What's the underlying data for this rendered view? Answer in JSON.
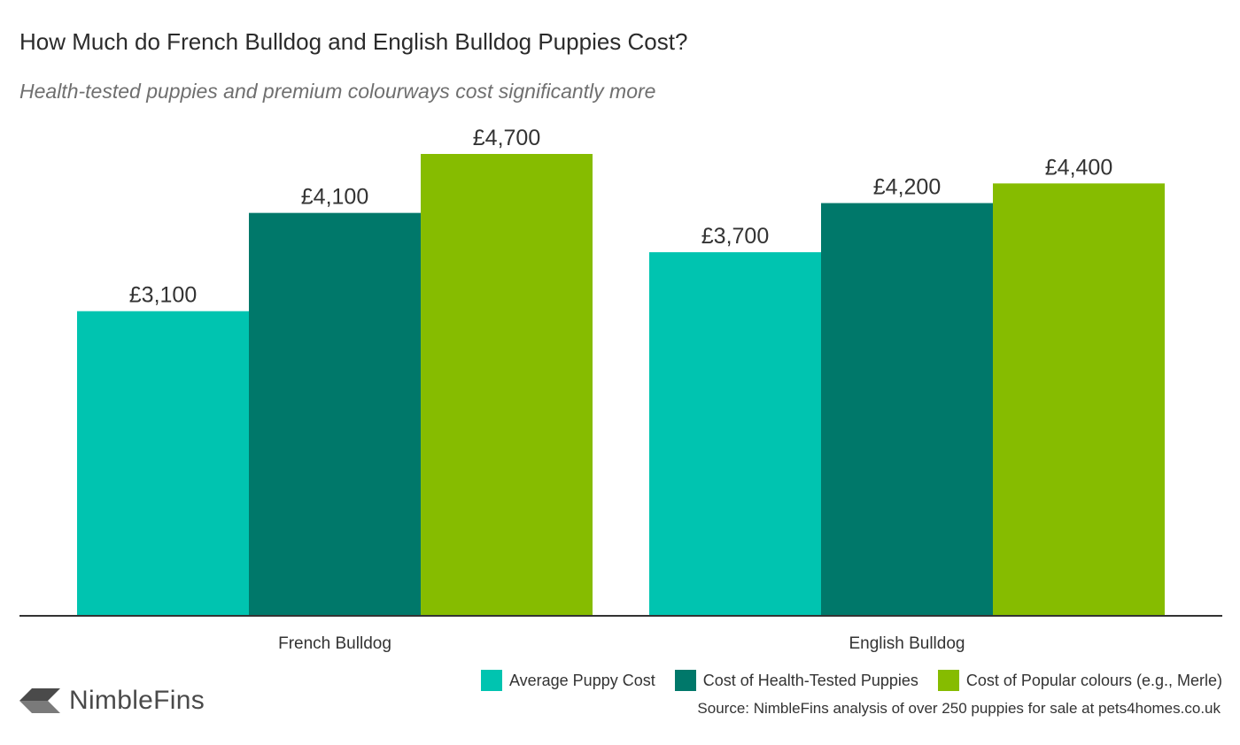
{
  "chart_data": {
    "type": "bar",
    "title": "How Much do French Bulldog and English Bulldog Puppies Cost?",
    "subtitle": "Health-tested puppies and premium colourways cost significantly more",
    "categories": [
      "French Bulldog",
      "English Bulldog"
    ],
    "series": [
      {
        "name": "Average Puppy Cost",
        "values": [
          3100,
          3700
        ],
        "labels": [
          "£3,100",
          "£3,700"
        ],
        "color": "#00c4b0"
      },
      {
        "name": "Cost of Health-Tested Puppies",
        "values": [
          4100,
          4200
        ],
        "labels": [
          "£4,100",
          "£4,200"
        ],
        "color": "#00786a"
      },
      {
        "name": "Cost of Popular colours (e.g., Merle)",
        "values": [
          4700,
          4400
        ],
        "labels": [
          "£4,700",
          "£4,400"
        ],
        "color": "#86bc00"
      }
    ],
    "xlabel": "",
    "ylabel": "",
    "ylim": [
      0,
      4700
    ],
    "grid": false,
    "legend_position": "bottom-right"
  },
  "source": "Source: NimbleFins analysis of over 250 puppies for sale at pets4homes.co.uk",
  "logo": {
    "text": "NimbleFins",
    "icon": "chevron-left-logo-icon",
    "color": "#4a4a4a"
  }
}
